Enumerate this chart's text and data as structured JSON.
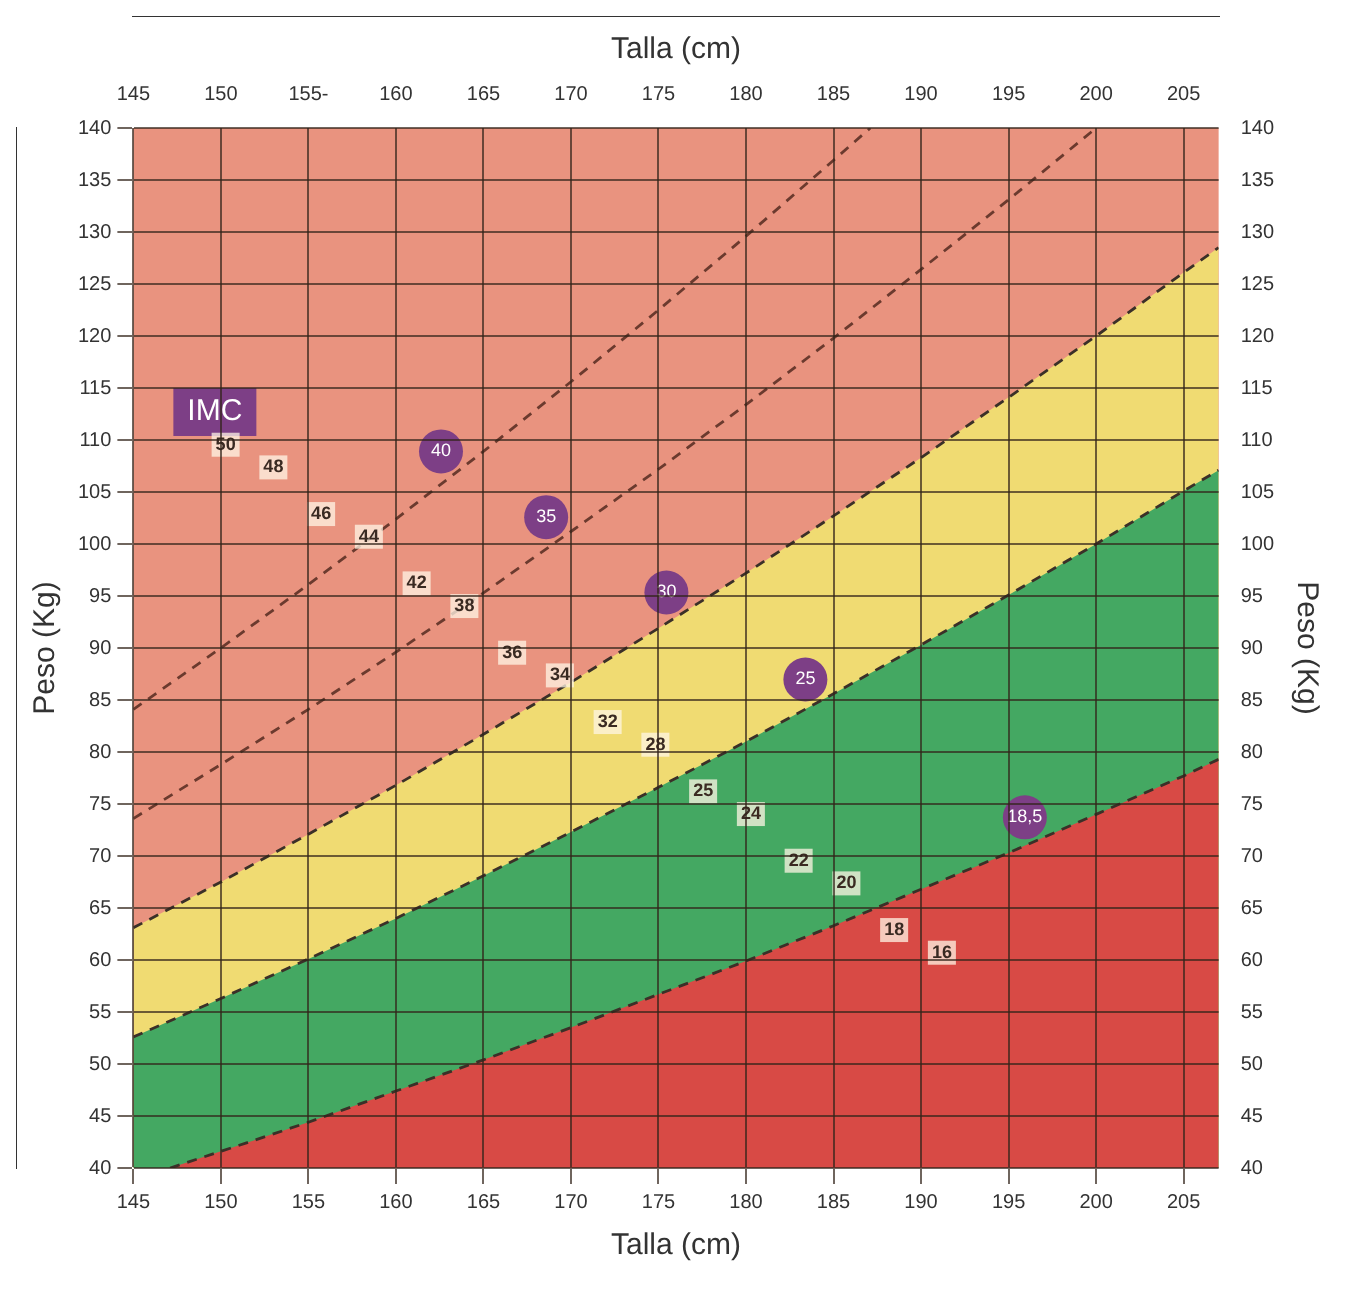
{
  "chart_data": {
    "type": "area",
    "xlabel": "Talla (cm)",
    "x2label": "Talla (cm)",
    "ylabel": "Peso (Kg)",
    "y2label": "Peso (Kg)",
    "xlim": [
      145,
      207
    ],
    "x2lim": [
      145,
      207
    ],
    "ylim": [
      40,
      140
    ],
    "y2lim": [
      40,
      140
    ],
    "xticks": [
      145,
      150,
      155,
      160,
      165,
      170,
      175,
      180,
      185,
      190,
      195,
      200,
      205
    ],
    "x2ticks": [
      145,
      150,
      {
        "value": 155,
        "label": "155-"
      },
      160,
      165,
      170,
      175,
      180,
      185,
      190,
      195,
      200,
      205
    ],
    "yticks": [
      40,
      45,
      50,
      55,
      60,
      65,
      70,
      75,
      80,
      85,
      90,
      95,
      100,
      105,
      110,
      115,
      120,
      125,
      130,
      135,
      140
    ],
    "y2ticks": [
      40,
      45,
      50,
      55,
      60,
      65,
      70,
      75,
      80,
      85,
      90,
      95,
      100,
      105,
      110,
      115,
      120,
      125,
      130,
      135,
      140
    ],
    "grid": true,
    "legend": false,
    "line_style": "dashed",
    "series": [
      {
        "name": "18,5",
        "color": "#d84a45",
        "x": [
          147.1,
          150,
          155,
          160,
          165,
          170,
          175,
          180,
          185,
          190,
          195,
          200,
          205,
          207
        ],
        "values": [
          40,
          41.6,
          44.4,
          47.4,
          50.4,
          53.5,
          56.7,
          59.9,
          63.3,
          66.8,
          70.3,
          74.0,
          77.7,
          79.3
        ]
      },
      {
        "name": "25",
        "color": "#44a862",
        "x": [
          145,
          150,
          155,
          160,
          165,
          170,
          175,
          180,
          185,
          190,
          195,
          200,
          205,
          207
        ],
        "values": [
          52.6,
          56.3,
          60.1,
          64.0,
          68.1,
          72.3,
          76.6,
          81.0,
          85.6,
          90.3,
          95.1,
          100.0,
          105.1,
          107.1
        ]
      },
      {
        "name": "30",
        "color": "#f0db72",
        "x": [
          145,
          150,
          155,
          160,
          165,
          170,
          175,
          180,
          185,
          190,
          195,
          200,
          205,
          207
        ],
        "values": [
          63.1,
          67.5,
          72.1,
          76.8,
          81.7,
          86.7,
          91.9,
          97.2,
          102.7,
          108.3,
          114.1,
          120.0,
          126.1,
          128.5
        ]
      },
      {
        "name": "35",
        "type": "line",
        "color": "#6b3a2e",
        "x": [
          145,
          150,
          155,
          160,
          165,
          170,
          175,
          180,
          185,
          190,
          195,
          200
        ],
        "values": [
          73.6,
          78.8,
          84.1,
          89.6,
          95.3,
          101.2,
          107.2,
          113.4,
          119.8,
          126.4,
          133.1,
          140.0
        ]
      },
      {
        "name": "40",
        "type": "line",
        "color": "#6b3a2e",
        "x": [
          145,
          150,
          155,
          160,
          165,
          170,
          175,
          180,
          185,
          187.1
        ],
        "values": [
          84.1,
          90.0,
          96.1,
          102.4,
          108.9,
          115.6,
          122.5,
          129.6,
          136.9,
          140.0
        ]
      }
    ],
    "annotations": [
      "IMC",
      "50",
      "48",
      "46",
      "44",
      "42",
      "38",
      "36",
      "34",
      "32",
      "28",
      "25",
      "24",
      "22",
      "20",
      "18",
      "16"
    ]
  }
}
